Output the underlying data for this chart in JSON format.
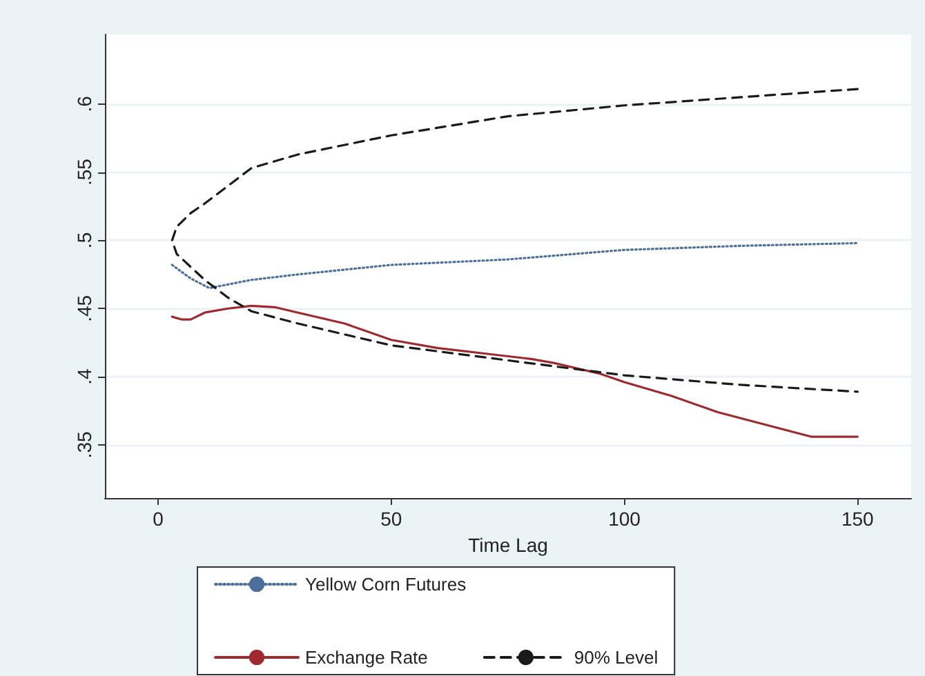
{
  "chart_data": {
    "type": "line",
    "xlabel": "Time Lag",
    "xlim": [
      -11.4,
      161.5
    ],
    "xticks": [
      0,
      50,
      100,
      150
    ],
    "ylim": [
      0.311,
      0.651
    ],
    "yticks": [
      {
        "value": 0.35,
        "label": ".35"
      },
      {
        "value": 0.4,
        "label": ".4"
      },
      {
        "value": 0.45,
        "label": ".45"
      },
      {
        "value": 0.5,
        "label": ".5"
      },
      {
        "value": 0.55,
        "label": ".55"
      },
      {
        "value": 0.6,
        "label": ".6"
      }
    ],
    "grid": "y",
    "legend": "bottom",
    "marker": "none",
    "series": [
      {
        "name": "Yellow Corn Futures",
        "color": "#4a6f9a",
        "line_style": "dotted",
        "x": [
          3,
          7,
          11,
          20,
          30,
          50,
          75,
          100,
          125,
          150
        ],
        "values": [
          0.482,
          0.472,
          0.465,
          0.471,
          0.475,
          0.482,
          0.486,
          0.493,
          0.496,
          0.498
        ]
      },
      {
        "name": "Exchange Rate",
        "color": "#9e2a2f",
        "line_style": "solid",
        "x": [
          3,
          5,
          7,
          10,
          15,
          20,
          25,
          30,
          40,
          50,
          60,
          70,
          80,
          85,
          90,
          95,
          100,
          110,
          120,
          130,
          140,
          150
        ],
        "values": [
          0.444,
          0.442,
          0.442,
          0.447,
          0.45,
          0.452,
          0.451,
          0.447,
          0.439,
          0.427,
          0.421,
          0.417,
          0.413,
          0.41,
          0.406,
          0.402,
          0.396,
          0.386,
          0.374,
          0.365,
          0.356,
          0.356
        ]
      },
      {
        "name": "90% Level",
        "color": "#1a1a1a",
        "line_style": "dashed",
        "x": [
          150,
          125,
          100,
          75,
          50,
          30,
          20,
          10,
          7,
          4,
          3,
          4,
          10,
          15,
          20,
          30,
          50,
          75,
          100,
          125,
          150
        ],
        "values": [
          0.611,
          0.605,
          0.599,
          0.591,
          0.577,
          0.563,
          0.553,
          0.527,
          0.52,
          0.51,
          0.5,
          0.49,
          0.471,
          0.458,
          0.448,
          0.439,
          0.423,
          0.412,
          0.401,
          0.394,
          0.389
        ]
      }
    ]
  }
}
